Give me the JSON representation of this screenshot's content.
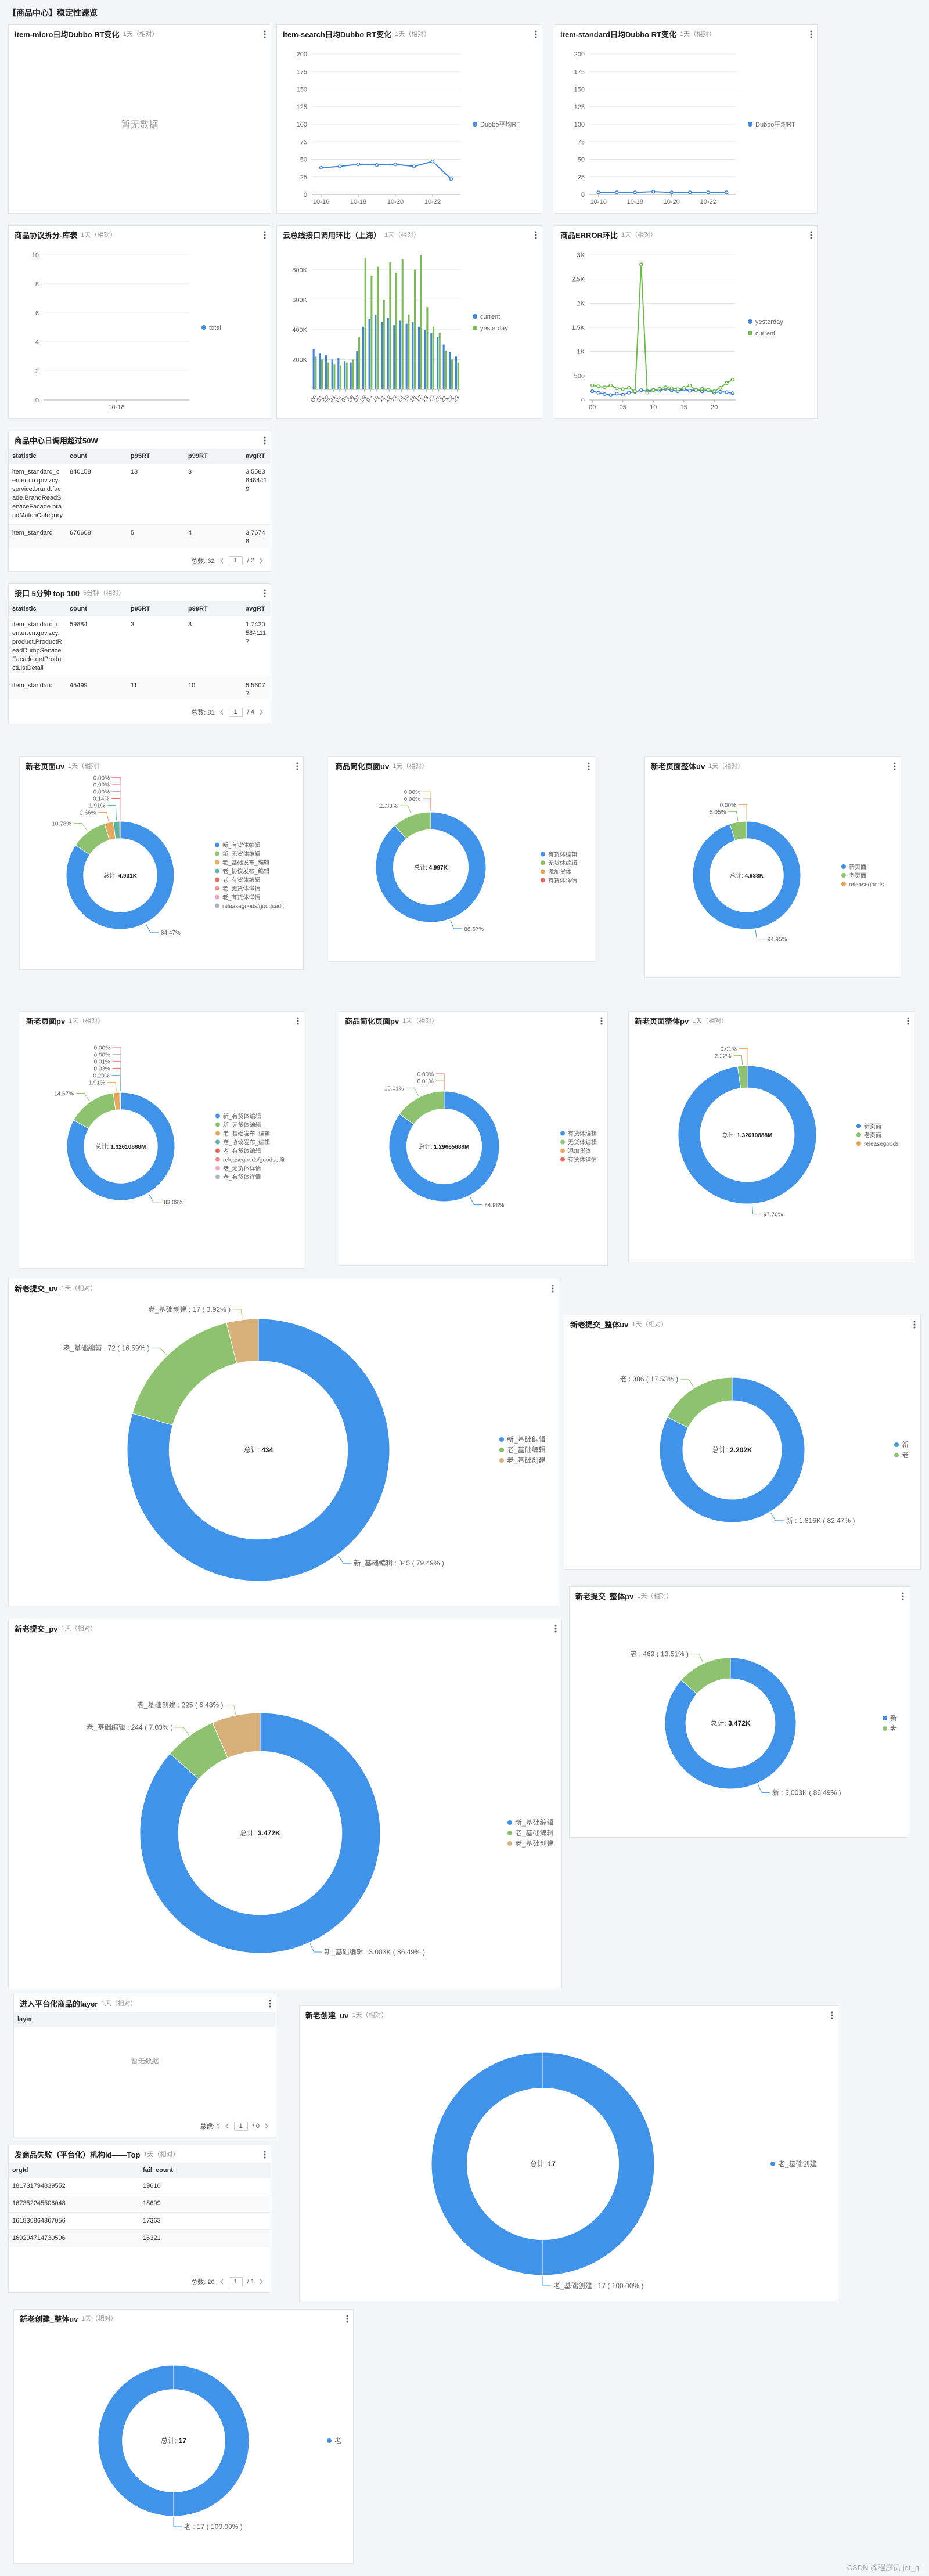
{
  "header": {
    "title": "【商品中心】稳定性速览"
  },
  "watermark": "CSDN @程序员 jet_qi",
  "chart_data": [
    {
      "type": "empty",
      "title": "item-micro日均Dubbo RT变化",
      "subtitle": "1天（相对）",
      "no_data": "暂无数据"
    },
    {
      "type": "line",
      "title": "item-search日均Dubbo RT变化",
      "subtitle": "1天（相对）",
      "categories": [
        "10-16",
        null,
        "10-18",
        null,
        "10-20",
        null,
        "10-22",
        null
      ],
      "series": [
        {
          "name": "Dubbo平均RT",
          "color": "#3d86d8",
          "values": [
            38,
            40,
            43,
            42,
            43,
            40,
            47,
            22
          ]
        }
      ],
      "ylim": [
        0,
        200
      ],
      "yticks": [
        0,
        25,
        50,
        75,
        100,
        125,
        150,
        175,
        200
      ],
      "grid": true,
      "markers": true
    },
    {
      "type": "line",
      "title": "item-standard日均Dubbo RT变化",
      "subtitle": "1天（相对）",
      "categories": [
        "10-16",
        null,
        "10-18",
        null,
        "10-20",
        null,
        "10-22",
        null
      ],
      "series": [
        {
          "name": "Dubbo平均RT",
          "color": "#3d86d8",
          "values": [
            3,
            3,
            3,
            4,
            3,
            3,
            3,
            3
          ]
        }
      ],
      "ylim": [
        0,
        200
      ],
      "yticks": [
        0,
        25,
        50,
        75,
        100,
        125,
        150,
        175,
        200
      ],
      "grid": true,
      "markers": true
    },
    {
      "type": "line",
      "title": "商品协议拆分-库表",
      "subtitle": "1天（相对）",
      "categories": [
        "10-18"
      ],
      "series": [
        {
          "name": "total",
          "color": "#3d86d8",
          "values": [
            null
          ]
        }
      ],
      "ylim": [
        0,
        10
      ],
      "yticks": [
        0,
        2,
        4,
        6,
        8,
        10
      ],
      "grid": true,
      "markers": true
    },
    {
      "type": "bar",
      "title": "云总线接口调用环比（上海）",
      "subtitle": "1天（相对）",
      "rotate_labels": true,
      "categories": [
        "00",
        "01",
        "02",
        "03",
        "04",
        "05",
        "06",
        "07",
        "08",
        "09",
        "10",
        "11",
        "12",
        "13",
        "14",
        "15",
        "16",
        "17",
        "18",
        "19",
        "20",
        "21",
        "22",
        "23"
      ],
      "series": [
        {
          "name": "current",
          "color": "#3d86d8",
          "values": [
            270000,
            240000,
            230000,
            200000,
            210000,
            190000,
            180000,
            260000,
            420000,
            470000,
            500000,
            450000,
            480000,
            430000,
            460000,
            440000,
            450000,
            420000,
            400000,
            380000,
            350000,
            300000,
            250000,
            220000
          ]
        },
        {
          "name": "yesterday",
          "color": "#7dbb56",
          "values": [
            220000,
            200000,
            180000,
            170000,
            160000,
            180000,
            200000,
            350000,
            880000,
            760000,
            820000,
            600000,
            850000,
            780000,
            870000,
            500000,
            800000,
            900000,
            550000,
            420000,
            380000,
            260000,
            200000,
            180000
          ]
        }
      ],
      "ylim": [
        0,
        900000
      ],
      "yticks": [
        {
          "value": 200000,
          "label": "200K"
        },
        {
          "value": 400000,
          "label": "400K"
        },
        {
          "value": 600000,
          "label": "600K"
        },
        {
          "value": 800000,
          "label": "800K"
        }
      ],
      "grid": true
    },
    {
      "type": "line",
      "title": "商品ERROR环比",
      "subtitle": "1天（相对）",
      "categories": [
        "00",
        null,
        null,
        null,
        null,
        "05",
        null,
        null,
        null,
        null,
        "10",
        null,
        null,
        null,
        null,
        "15",
        null,
        null,
        null,
        null,
        "20",
        null,
        null,
        null
      ],
      "series": [
        {
          "name": "yesterday",
          "color": "#3d7fd6",
          "values": [
            180,
            150,
            120,
            100,
            130,
            110,
            150,
            170,
            200,
            180,
            210,
            190,
            230,
            200,
            180,
            220,
            190,
            210,
            180,
            200,
            150,
            170,
            160,
            140
          ]
        },
        {
          "name": "current",
          "color": "#6dbb4b",
          "values": [
            300,
            280,
            260,
            300,
            240,
            220,
            250,
            180,
            2800,
            150,
            200,
            230,
            260,
            240,
            220,
            250,
            300,
            200,
            230,
            210,
            180,
            250,
            350,
            420
          ]
        }
      ],
      "ylim": [
        0,
        3000
      ],
      "yticks": [
        0,
        500,
        {
          "value": 1000,
          "label": "1K"
        },
        {
          "value": 1500,
          "label": "1.5K"
        },
        {
          "value": 2000,
          "label": "2K"
        },
        {
          "value": 2500,
          "label": "2.5K"
        },
        {
          "value": 3000,
          "label": "3K"
        }
      ],
      "grid": true,
      "markers": true
    },
    {
      "type": "donut",
      "title": "新老页面uv",
      "subtitle": "1天（相对）",
      "center_label": "总计: ",
      "center_value": "4.931K",
      "categories": [
        "新_有货体编辑",
        "新_无货体编辑",
        "老_基础发布_编辑",
        "老_协议发布_编辑",
        "老_有货体编辑",
        "老_无货体详情",
        "老_有货体详情",
        "releasegoods/goodsedit"
      ],
      "values": [
        84.47,
        10.78,
        2.66,
        1.91,
        0.14,
        0,
        0,
        0
      ],
      "value_labels": [
        "84.47%",
        "10.78%",
        "2.66%",
        "1.91%",
        "0.14%",
        "0.00%",
        "0.00%",
        "0.00%"
      ],
      "colors": [
        "#4193ea",
        "#8dc36e",
        "#e3a85b",
        "#5ab1a0",
        "#e86a5c",
        "#f08c8c",
        "#f2a6c2",
        "#b0b6c0"
      ]
    },
    {
      "type": "donut",
      "title": "商品简化页面uv",
      "subtitle": "1天（相对）",
      "center_label": "总计: ",
      "center_value": "4.997K",
      "categories": [
        "有货体编辑",
        "无货体编辑",
        "添加货体",
        "有货体详情"
      ],
      "values": [
        88.67,
        11.33,
        0,
        0
      ],
      "value_labels": [
        "88.67%",
        "11.33%",
        "0.00%",
        "0.00%"
      ],
      "colors": [
        "#4193ea",
        "#8dc36e",
        "#e3a85b",
        "#e86a5c"
      ]
    },
    {
      "type": "donut",
      "title": "新老页面整体uv",
      "subtitle": "1天（相对）",
      "center_label": "总计: ",
      "center_value": "4.933K",
      "categories": [
        "新页面",
        "老页面",
        "releasegoods"
      ],
      "values": [
        94.95,
        5.05,
        0
      ],
      "value_labels": [
        "94.95%",
        "5.05%",
        "0.00%"
      ],
      "colors": [
        "#4193ea",
        "#8dc36e",
        "#e3a85b"
      ]
    },
    {
      "type": "donut",
      "title": "新老页面pv",
      "subtitle": "1天（相对）",
      "center_label": "总计: ",
      "center_value": "1.32610888M",
      "categories": [
        "新_有货体编辑",
        "新_无货体编辑",
        "老_基础发布_编辑",
        "老_协议发布_编辑",
        "老_有货体编辑",
        "releasegoods/goodsedit",
        "老_无货体详情",
        "老_有货体详情"
      ],
      "values": [
        83.09,
        14.67,
        1.91,
        0.29,
        0.03,
        0.01,
        0,
        0
      ],
      "value_labels": [
        "83.09%",
        "14.67%",
        "1.91%",
        "0.29%",
        "0.03%",
        "0.01%",
        "0.00%",
        "0.00%"
      ],
      "colors": [
        "#4193ea",
        "#8dc36e",
        "#e3a85b",
        "#5ab1a0",
        "#e86a5c",
        "#f08c8c",
        "#f2a6c2",
        "#b0b6c0"
      ]
    },
    {
      "type": "donut",
      "title": "商品简化页面pv",
      "subtitle": "1天（相对）",
      "center_label": "总计: ",
      "center_value": "1.29665688M",
      "categories": [
        "有货体编辑",
        "无货体编辑",
        "添加货体",
        "有货体详情"
      ],
      "values": [
        84.98,
        15.01,
        0.01,
        0
      ],
      "value_labels": [
        "84.98%",
        "15.01%",
        "0.01%",
        "0.00%"
      ],
      "colors": [
        "#4193ea",
        "#8dc36e",
        "#e3a85b",
        "#e86a5c"
      ]
    },
    {
      "type": "donut",
      "title": "新老页面整体pv",
      "subtitle": "1天（相对）",
      "center_label": "总计: ",
      "center_value": "1.32610888M",
      "categories": [
        "新页面",
        "老页面",
        "releasegoods"
      ],
      "values": [
        97.76,
        2.22,
        0.01
      ],
      "value_labels": [
        "97.76%",
        "2.22%",
        "0.01%"
      ],
      "colors": [
        "#4193ea",
        "#8dc36e",
        "#e3a85b"
      ]
    },
    {
      "type": "donut",
      "title": "新老提交_uv",
      "subtitle": "1天（相对）",
      "center_label": "总计: ",
      "center_value": "434",
      "categories": [
        "新_基础编辑",
        "老_基础编辑",
        "老_基础创建"
      ],
      "values": [
        345,
        72,
        17
      ],
      "value_labels": [
        "新_基础编辑 : 345 ( 79.49% )",
        "老_基础编辑 : 72 ( 16.59% )",
        "老_基础创建 : 17 ( 3.92% )"
      ],
      "colors": [
        "#4193ea",
        "#8dc36e",
        "#d7b07a"
      ]
    },
    {
      "type": "donut",
      "title": "新老提交_整体uv",
      "subtitle": "1天（相对）",
      "center_label": "总计: ",
      "center_value": "2.202K",
      "categories": [
        "新",
        "老"
      ],
      "values": [
        1816,
        386
      ],
      "value_labels": [
        "新 : 1.816K ( 82.47% )",
        "老 : 386 ( 17.53% )"
      ],
      "colors": [
        "#4193ea",
        "#8dc36e"
      ]
    },
    {
      "type": "donut",
      "title": "新老提交_pv",
      "subtitle": "1天（相对）",
      "center_label": "总计: ",
      "center_value": "3.472K",
      "categories": [
        "新_基础编辑",
        "老_基础编辑",
        "老_基础创建"
      ],
      "values": [
        3003,
        244,
        225
      ],
      "value_labels": [
        "新_基础编辑 : 3.003K ( 86.49% )",
        "老_基础编辑 : 244 ( 7.03% )",
        "老_基础创建 : 225 ( 6.48% )"
      ],
      "colors": [
        "#4193ea",
        "#8dc36e",
        "#d7b07a"
      ]
    },
    {
      "type": "donut",
      "title": "新老提交_整体pv",
      "subtitle": "1天（相对）",
      "center_label": "总计: ",
      "center_value": "3.472K",
      "categories": [
        "新",
        "老"
      ],
      "values": [
        3003,
        469
      ],
      "value_labels": [
        "新 : 3.003K ( 86.49% )",
        "老 : 469 ( 13.51% )"
      ],
      "colors": [
        "#4193ea",
        "#8dc36e"
      ]
    },
    {
      "type": "donut",
      "title": "新老创建_uv",
      "subtitle": "1天（相对）",
      "center_label": "总计: ",
      "center_value": "17",
      "categories": [
        "老_基础创建"
      ],
      "values": [
        17
      ],
      "value_labels": [
        "老_基础创建 : 17 ( 100.00% )"
      ],
      "colors": [
        "#4193ea"
      ]
    },
    {
      "type": "donut",
      "title": "新老创建_整体uv",
      "subtitle": "1天（相对）",
      "center_label": "总计: ",
      "center_value": "17",
      "categories": [
        "老"
      ],
      "values": [
        17
      ],
      "value_labels": [
        "老 : 17 ( 100.00% )"
      ],
      "colors": [
        "#4193ea"
      ]
    }
  ],
  "tables": [
    {
      "title": "商品中心日调用超过50W",
      "columns": [
        "statistic",
        "count",
        "p95RT",
        "p99RT",
        "avgRT"
      ],
      "rows": [
        [
          "item_standard_center:cn.gov.zcy.service.brand.facade.BrandReadServiceFacade.brandMatchCategory",
          "840158",
          "13",
          "3",
          "3.55838484419"
        ],
        [
          "item_standard",
          "676668",
          "5",
          "4",
          "3.76748"
        ]
      ],
      "total": "总数: 32",
      "page": "1",
      "pages": "/ 2"
    },
    {
      "title": "接口 5分钟 top 100",
      "subtitle": "5分钟（相对）",
      "columns": [
        "statistic",
        "count",
        "p95RT",
        "p99RT",
        "avgRT"
      ],
      "rows": [
        [
          "item_standard_center:cn.gov.zcy.product.ProductReadDumpServiceFacade.getProductListDetail",
          "59884",
          "3",
          "3",
          "1.74205841117"
        ],
        [
          "item_standard",
          "45499",
          "11",
          "10",
          "5.56077"
        ]
      ],
      "total": "总数: 81",
      "page": "1",
      "pages": "/ 4"
    },
    {
      "title": "进入平台化商品的layer",
      "subtitle": "1天（相对）",
      "columns": [
        "layer"
      ],
      "rows": [],
      "no_data": "暂无数据",
      "total": "总数: 0",
      "page": "1",
      "pages": "/ 0"
    },
    {
      "title": "发商品失败（平台化）机构id——Top",
      "subtitle": "1天（相对）",
      "columns": [
        "orgId",
        "fail_count"
      ],
      "rows": [
        [
          "181731794839552",
          "19610"
        ],
        [
          "167352245506048",
          "18699"
        ],
        [
          "161836864367056",
          "17363"
        ],
        [
          "169204714730596",
          "16321"
        ]
      ],
      "total": "总数: 20",
      "page": "1",
      "pages": "/ 1"
    }
  ]
}
